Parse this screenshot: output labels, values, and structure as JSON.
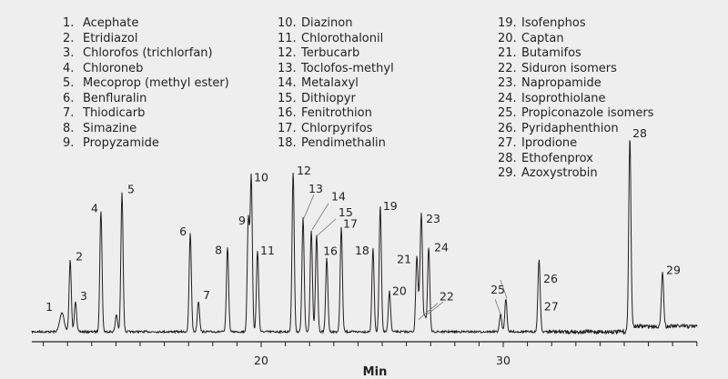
{
  "chart_data": {
    "type": "line",
    "title": "",
    "xlabel": "Min",
    "ylabel": "",
    "xlim": [
      10.5,
      38
    ],
    "x_ticks": [
      20,
      30
    ],
    "x_tick_labels": [
      "20",
      "30"
    ],
    "minor_tick_interval_min": 1,
    "y_units": "relative response (% of largest peak)",
    "grid": false,
    "legend_placement": "top",
    "peaks": [
      {
        "label": "1",
        "rt": 11.77,
        "height": 10
      },
      {
        "label": "2",
        "rt": 12.11,
        "height": 37
      },
      {
        "label": "3",
        "rt": 12.33,
        "height": 16
      },
      {
        "label": "4",
        "rt": 13.38,
        "height": 63
      },
      {
        "label": "",
        "rt": 14.02,
        "height": 9
      },
      {
        "label": "5",
        "rt": 14.25,
        "height": 72
      },
      {
        "label": "6",
        "rt": 17.07,
        "height": 51
      },
      {
        "label": "7",
        "rt": 17.41,
        "height": 16
      },
      {
        "label": "8",
        "rt": 18.61,
        "height": 44
      },
      {
        "label": "9",
        "rt": 19.47,
        "height": 58
      },
      {
        "label": "10",
        "rt": 19.59,
        "height": 80
      },
      {
        "label": "11",
        "rt": 19.85,
        "height": 42
      },
      {
        "label": "12",
        "rt": 21.32,
        "height": 83
      },
      {
        "label": "13",
        "rt": 21.73,
        "height": 59
      },
      {
        "label": "14",
        "rt": 22.07,
        "height": 53
      },
      {
        "label": "15",
        "rt": 22.29,
        "height": 50
      },
      {
        "label": "16",
        "rt": 22.71,
        "height": 38
      },
      {
        "label": "17",
        "rt": 23.31,
        "height": 54
      },
      {
        "label": "18",
        "rt": 24.62,
        "height": 43
      },
      {
        "label": "19",
        "rt": 24.92,
        "height": 65
      },
      {
        "label": "20",
        "rt": 25.3,
        "height": 21
      },
      {
        "label": "21",
        "rt": 26.43,
        "height": 39
      },
      {
        "label": "22",
        "rt": 26.54,
        "height": 12
      },
      {
        "label": "23",
        "rt": 26.62,
        "height": 59
      },
      {
        "label": "",
        "rt": 26.77,
        "height": 8
      },
      {
        "label": "24",
        "rt": 26.92,
        "height": 44
      },
      {
        "label": "25",
        "rt": 29.89,
        "height": 9
      },
      {
        "label": "",
        "rt": 30.11,
        "height": 17
      },
      {
        "label": "26",
        "rt": 31.47,
        "height": 26
      },
      {
        "label": "27",
        "rt": 31.5,
        "height": 13
      },
      {
        "label": "28",
        "rt": 35.23,
        "height": 100
      },
      {
        "label": "29",
        "rt": 36.58,
        "height": 29
      }
    ]
  },
  "legend": [
    [
      "1.",
      "Acephate"
    ],
    [
      "2.",
      "Etridiazol"
    ],
    [
      "3.",
      "Chlorofos (trichlorfan)"
    ],
    [
      "4.",
      "Chloroneb"
    ],
    [
      "5.",
      "Mecoprop (methyl ester)"
    ],
    [
      "6.",
      "Benfluralin"
    ],
    [
      "7.",
      "Thiodicarb"
    ],
    [
      "8.",
      "Simazine"
    ],
    [
      "9.",
      "Propyzamide"
    ],
    [
      "10.",
      "Diazinon"
    ],
    [
      "11.",
      "Chlorothalonil"
    ],
    [
      "12.",
      "Terbucarb"
    ],
    [
      "13.",
      "Toclofos-methyl"
    ],
    [
      "14.",
      "Metalaxyl"
    ],
    [
      "15.",
      "Dithiopyr"
    ],
    [
      "16.",
      "Fenitrothion"
    ],
    [
      "17.",
      "Chlorpyrifos"
    ],
    [
      "18.",
      "Pendimethalin"
    ],
    [
      "19.",
      "Isofenphos"
    ],
    [
      "20.",
      "Captan"
    ],
    [
      "21.",
      "Butamifos"
    ],
    [
      "22.",
      "Siduron isomers"
    ],
    [
      "23.",
      "Napropamide"
    ],
    [
      "24.",
      "Isoprothiolane"
    ],
    [
      "25.",
      "Propiconazole isomers"
    ],
    [
      "26.",
      "Pyridaphenthion"
    ],
    [
      "27.",
      "Iprodione"
    ],
    [
      "28.",
      "Ethofenprox"
    ],
    [
      "29.",
      "Azoxystrobin"
    ]
  ],
  "colors": {
    "trace": "#231f20",
    "background": "#eeeeee",
    "leader": "#777777"
  }
}
